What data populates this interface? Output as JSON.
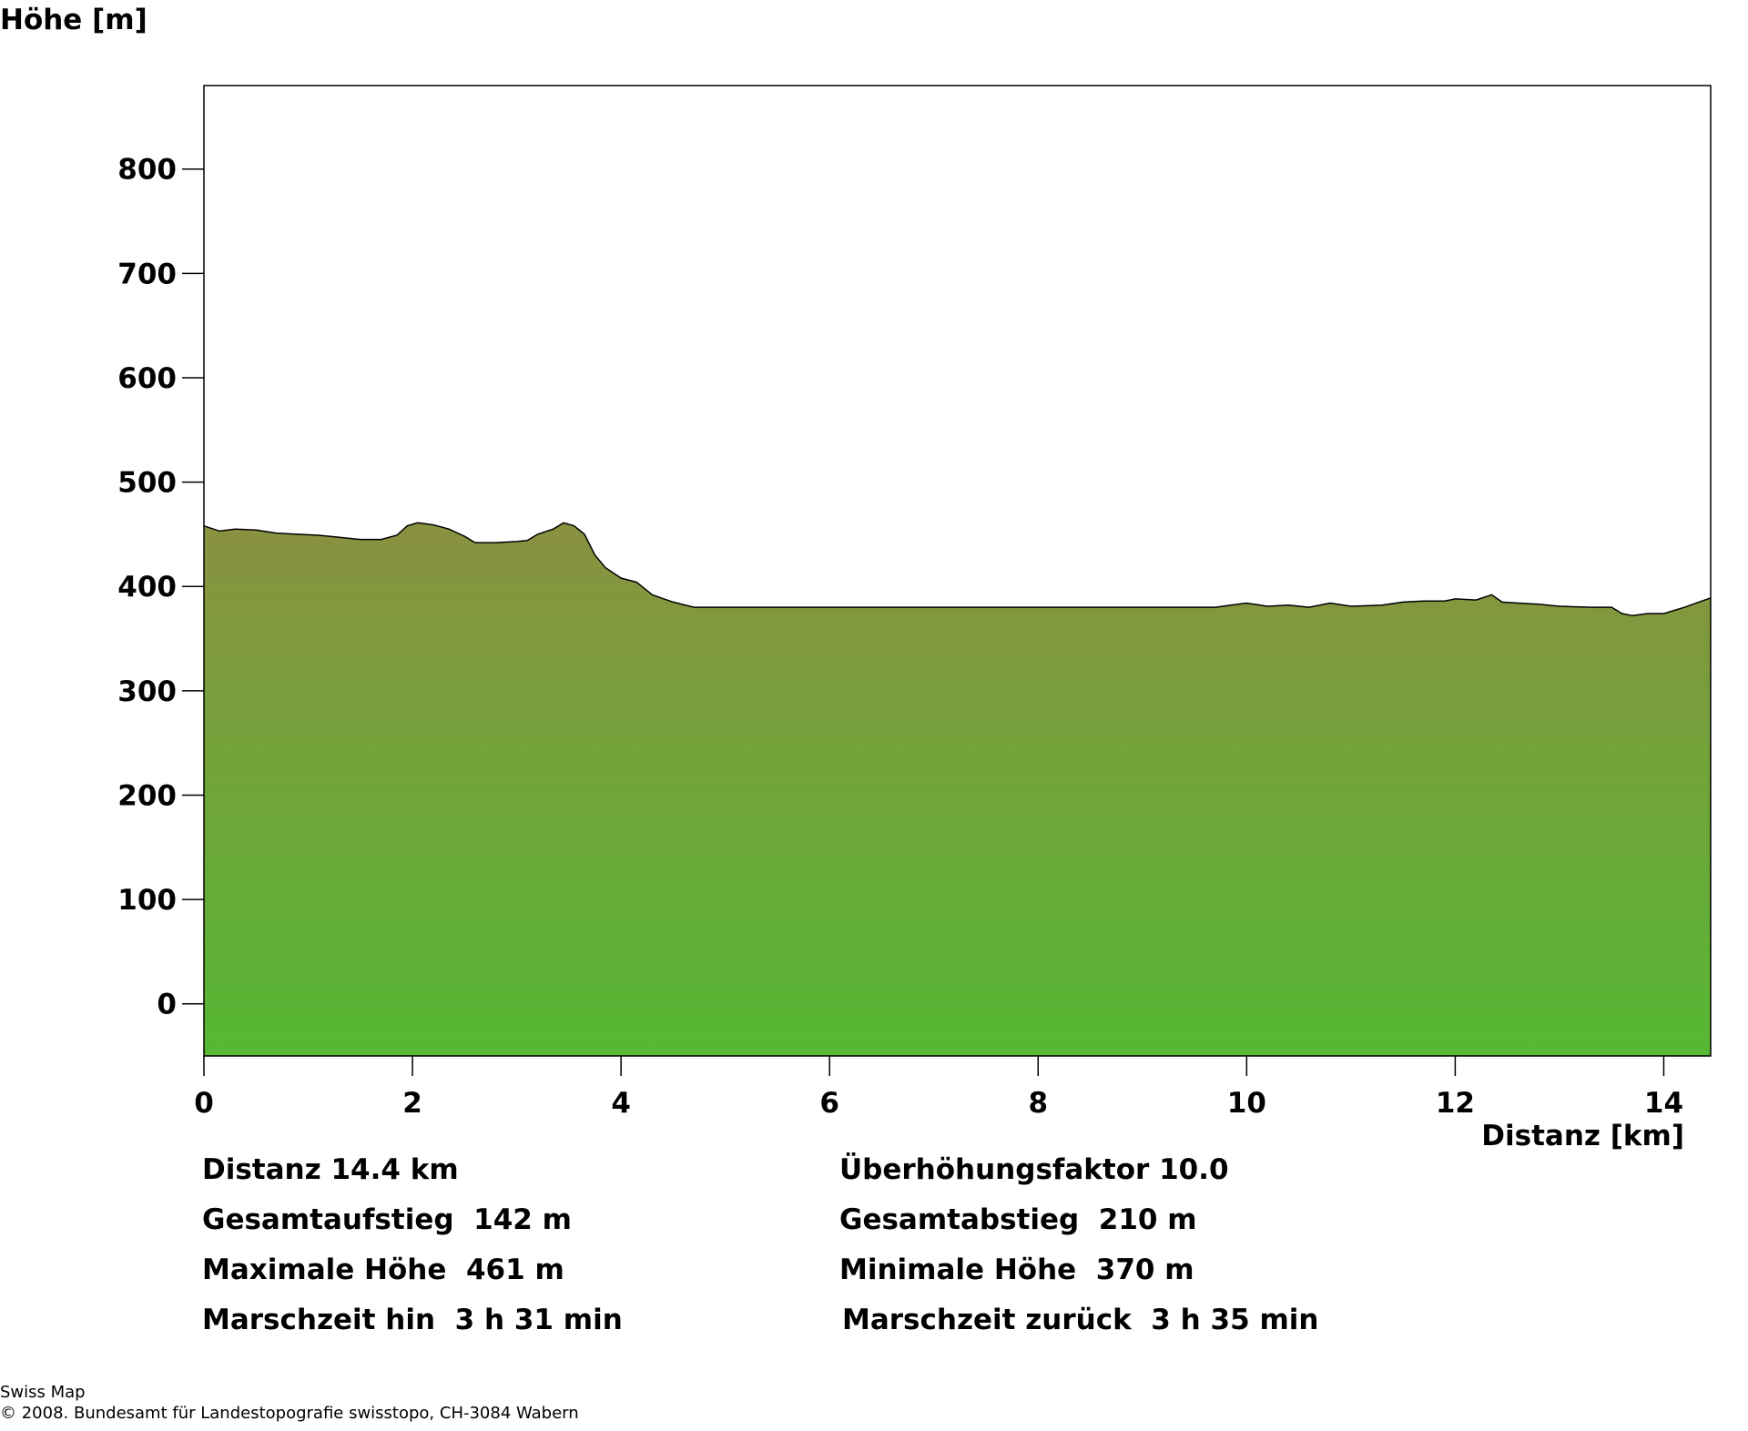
{
  "chart_data": {
    "type": "area",
    "ylabel": "Höhe [m]",
    "xlabel": "Distanz [km]",
    "xlim": [
      0,
      14.45
    ],
    "ylim": [
      -50,
      880
    ],
    "x_ticks": [
      "0",
      "2",
      "4",
      "6",
      "8",
      "10",
      "12",
      "14"
    ],
    "y_ticks": [
      "0",
      "100",
      "200",
      "300",
      "400",
      "500",
      "600",
      "700",
      "800"
    ],
    "colors": {
      "fill_top": "#8a9140",
      "fill_bottom": "#56b834",
      "outline": "#000000"
    },
    "grid": false,
    "x": [
      0,
      0.15,
      0.3,
      0.5,
      0.7,
      0.9,
      1.1,
      1.3,
      1.5,
      1.7,
      1.85,
      1.95,
      2.05,
      2.2,
      2.35,
      2.5,
      2.6,
      2.8,
      3.0,
      3.1,
      3.2,
      3.35,
      3.45,
      3.55,
      3.65,
      3.75,
      3.85,
      4.0,
      4.15,
      4.3,
      4.5,
      4.7,
      4.8,
      5.5,
      6.5,
      7.0,
      7.2,
      7.4,
      7.6,
      8.0,
      9.0,
      9.7,
      9.85,
      10.0,
      10.2,
      10.4,
      10.6,
      10.8,
      11.0,
      11.3,
      11.5,
      11.7,
      11.9,
      12.0,
      12.2,
      12.35,
      12.45,
      12.6,
      12.8,
      13.0,
      13.3,
      13.5,
      13.6,
      13.7,
      13.85,
      14.0,
      14.2,
      14.45
    ],
    "values": [
      458,
      453,
      455,
      454,
      451,
      450,
      449,
      447,
      445,
      445,
      449,
      458,
      461,
      459,
      455,
      448,
      442,
      442,
      443,
      444,
      450,
      455,
      461,
      458,
      450,
      430,
      418,
      408,
      404,
      392,
      385,
      380,
      380,
      380,
      380,
      380,
      380,
      380,
      380,
      380,
      380,
      380,
      382,
      384,
      381,
      382,
      380,
      384,
      381,
      382,
      385,
      386,
      386,
      388,
      387,
      392,
      385,
      384,
      383,
      381,
      380,
      380,
      374,
      372,
      374,
      374,
      380,
      389
    ]
  },
  "stats": {
    "distance": "Distanz 14.4 km",
    "exaggeration": "Überhöhungsfaktor 10.0",
    "ascent": "Gesamtaufstieg  142 m",
    "descent": "Gesamtabstieg  210 m",
    "max_height": "Maximale Höhe  461 m",
    "min_height": "Minimale Höhe  370 m",
    "time_out": "Marschzeit hin  3 h 31 min",
    "time_back": "Marschzeit zurück  3 h 35 min"
  },
  "footer": {
    "line1": "Swiss Map",
    "line2": "© 2008. Bundesamt für Landestopografie swisstopo, CH-3084 Wabern"
  }
}
